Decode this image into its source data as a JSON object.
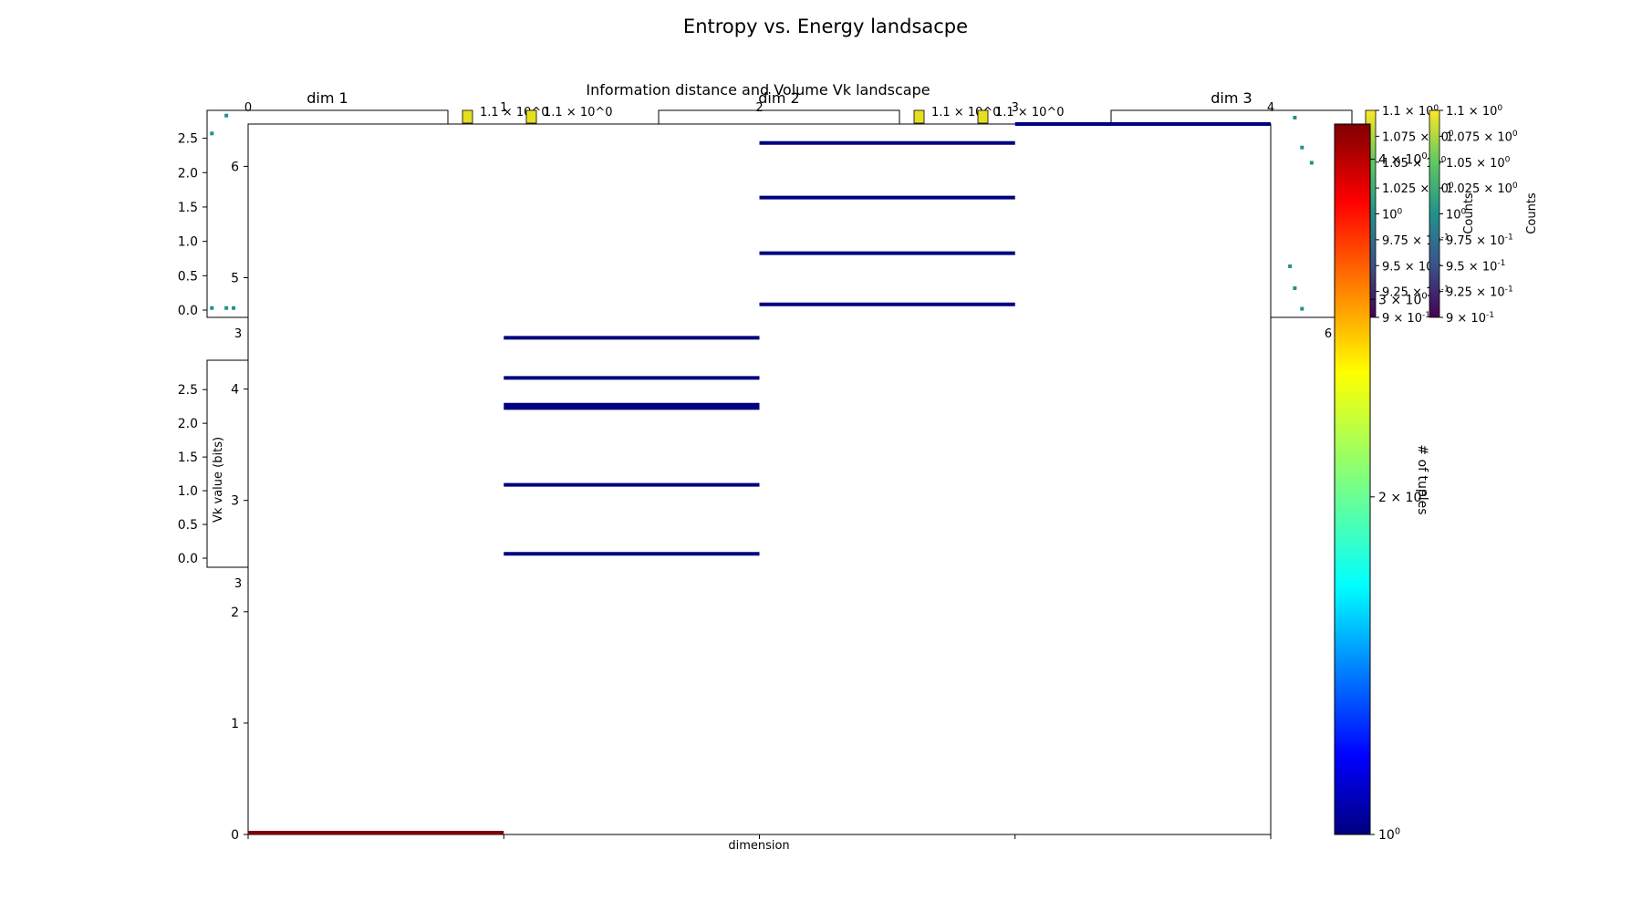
{
  "figure": {
    "suptitle": "Entropy vs. Energy landsacpe"
  },
  "chart_data": [
    {
      "type": "bar",
      "title": "Information distance and Volume Vk landscape",
      "xlabel": "dimension",
      "ylabel": "",
      "xlim": [
        0,
        4
      ],
      "ylim": [
        0,
        6.38
      ],
      "x_ticks": [
        "0",
        "1",
        "2",
        "3",
        "4"
      ],
      "y_ticks": [
        "0",
        "1",
        "2",
        "3",
        "4",
        "5",
        "6"
      ],
      "segments": [
        {
          "x0": 0,
          "x1": 1,
          "y": 0.0,
          "color": "#7f0000"
        },
        {
          "x0": 1,
          "x1": 2,
          "y": 2.52,
          "color": "#000080"
        },
        {
          "x0": 1,
          "x1": 2,
          "y": 3.14,
          "color": "#000080"
        },
        {
          "x0": 1,
          "x1": 2,
          "y": 3.83,
          "color": "#000080"
        },
        {
          "x0": 1,
          "x1": 2,
          "y": 3.86,
          "color": "#000080"
        },
        {
          "x0": 1,
          "x1": 2,
          "y": 4.1,
          "color": "#000080"
        },
        {
          "x0": 1,
          "x1": 2,
          "y": 4.46,
          "color": "#000080"
        },
        {
          "x0": 2,
          "x1": 3,
          "y": 4.76,
          "color": "#000080"
        },
        {
          "x0": 2,
          "x1": 3,
          "y": 5.22,
          "color": "#000080"
        },
        {
          "x0": 2,
          "x1": 3,
          "y": 5.72,
          "color": "#000080"
        },
        {
          "x0": 2,
          "x1": 3,
          "y": 6.21,
          "color": "#000080"
        },
        {
          "x0": 3,
          "x1": 4,
          "y": 6.38,
          "color": "#000080"
        }
      ],
      "colorbar": {
        "label": "# of tuples",
        "ticks": [
          "10^0",
          "2 × 10^0",
          "3 × 10^0",
          "4 × 10^0"
        ],
        "colormap": "jet"
      }
    },
    {
      "type": "scatter",
      "title": "dim 1",
      "xlim": [
        0,
        1
      ],
      "ylim": [
        0,
        2.8
      ],
      "x_ticks": [
        "3"
      ],
      "y_ticks": [
        "0.0",
        "0.5",
        "1.0",
        "1.5",
        "2.0",
        "2.5"
      ],
      "points": [
        {
          "x": 0.02,
          "y": 0.03
        },
        {
          "x": 0.08,
          "y": 0.03
        },
        {
          "x": 0.11,
          "y": 0.03
        },
        {
          "x": 0.02,
          "y": 2.57
        },
        {
          "x": 0.08,
          "y": 2.83
        }
      ],
      "colorbar": {
        "label": "Counts",
        "ticks": [
          "9 × 10^-1",
          "9.25 × 10^-1",
          "9.5 × 10^-1",
          "9.75 × 10^-1",
          "10^0",
          "1.025 × 10^0",
          "1.05 × 10^0",
          "1.075 × 10^0",
          "1.1 × 10^0"
        ],
        "colormap": "viridis"
      }
    },
    {
      "type": "scatter",
      "title": "dim 2",
      "ylabel": "Vk value (bits)",
      "ylim": [
        0,
        2.8
      ],
      "x_ticks": [
        "3"
      ],
      "y_ticks": [
        "0.0",
        "0.5",
        "1.0",
        "1.5",
        "2.0",
        "2.5"
      ],
      "points": []
    },
    {
      "type": "scatter",
      "title": "dim 3",
      "x_ticks": [
        "6"
      ],
      "points": [
        {
          "x": 0.1,
          "y": 2.9
        },
        {
          "x": 0.13,
          "y": 2.45
        },
        {
          "x": 0.17,
          "y": 2.22
        },
        {
          "x": 0.35,
          "y": 2.3
        },
        {
          "x": 0.08,
          "y": 0.66
        },
        {
          "x": 0.1,
          "y": 0.33
        },
        {
          "x": 0.13,
          "y": 0.02
        }
      ]
    }
  ],
  "colorbar_small_ticks": [
    "9 × 10^-1",
    "9.25 × 10^-1",
    "9.5 × 10^-1",
    "9.75 × 10^-1",
    "10^0",
    "1.025 × 10^0",
    "1.05 × 10^0",
    "1.075 × 10^0",
    "1.1 × 10^0"
  ],
  "tiny_colorbar_label": "1.1 × 10^0",
  "counts_label": "Counts"
}
